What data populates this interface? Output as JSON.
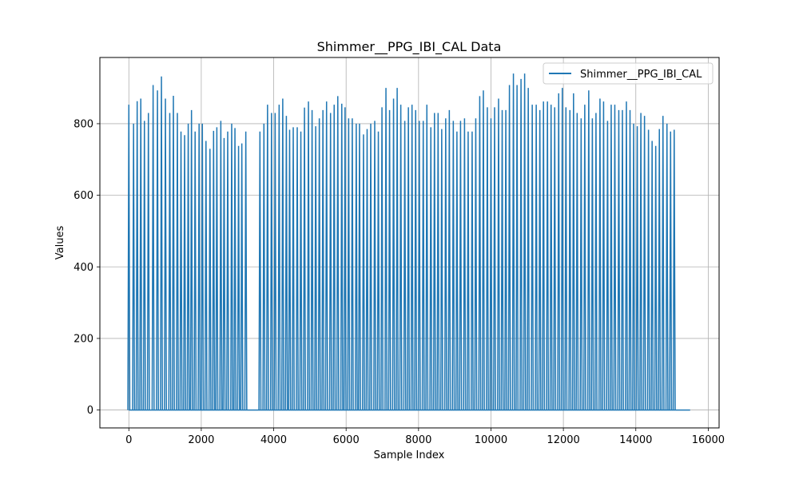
{
  "chart_data": {
    "type": "line",
    "title": "Shimmer__PPG_IBI_CAL Data",
    "xlabel": "Sample Index",
    "ylabel": "Values",
    "xlim": [
      -800,
      16300
    ],
    "ylim": [
      -50,
      985
    ],
    "xticks": [
      0,
      2000,
      4000,
      6000,
      8000,
      10000,
      12000,
      14000,
      16000
    ],
    "xtick_labels": [
      "0",
      "2000",
      "4000",
      "6000",
      "8000",
      "10000",
      "12000",
      "14000",
      "16000"
    ],
    "yticks": [
      0,
      200,
      400,
      600,
      800
    ],
    "ytick_labels": [
      "0",
      "200",
      "400",
      "600",
      "800"
    ],
    "grid": true,
    "legend_position": "top-right",
    "series": [
      {
        "name": "Shimmer__PPG_IBI_CAL",
        "color": "#1f77b4",
        "description": "baseline 0 with sparse impulse spikes (IBI values) at detected beats",
        "x_end": 15500,
        "spikes": [
          [
            0,
            853
          ],
          [
            130,
            800
          ],
          [
            230,
            863
          ],
          [
            330,
            870
          ],
          [
            430,
            808
          ],
          [
            540,
            830
          ],
          [
            670,
            908
          ],
          [
            790,
            893
          ],
          [
            900,
            932
          ],
          [
            1010,
            870
          ],
          [
            1130,
            830
          ],
          [
            1230,
            878
          ],
          [
            1340,
            830
          ],
          [
            1440,
            778
          ],
          [
            1540,
            768
          ],
          [
            1640,
            800
          ],
          [
            1730,
            838
          ],
          [
            1830,
            778
          ],
          [
            1940,
            800
          ],
          [
            2030,
            800
          ],
          [
            2130,
            752
          ],
          [
            2240,
            730
          ],
          [
            2340,
            780
          ],
          [
            2430,
            790
          ],
          [
            2540,
            808
          ],
          [
            2630,
            760
          ],
          [
            2730,
            778
          ],
          [
            2840,
            800
          ],
          [
            2930,
            788
          ],
          [
            3030,
            738
          ],
          [
            3120,
            745
          ],
          [
            3230,
            778
          ],
          [
            3620,
            778
          ],
          [
            3730,
            800
          ],
          [
            3830,
            853
          ],
          [
            3940,
            830
          ],
          [
            4040,
            830
          ],
          [
            4150,
            853
          ],
          [
            4250,
            870
          ],
          [
            4350,
            822
          ],
          [
            4440,
            783
          ],
          [
            4540,
            790
          ],
          [
            4650,
            790
          ],
          [
            4750,
            778
          ],
          [
            4850,
            845
          ],
          [
            4960,
            862
          ],
          [
            5060,
            838
          ],
          [
            5160,
            793
          ],
          [
            5260,
            815
          ],
          [
            5360,
            838
          ],
          [
            5460,
            862
          ],
          [
            5570,
            830
          ],
          [
            5670,
            853
          ],
          [
            5770,
            877
          ],
          [
            5880,
            856
          ],
          [
            5970,
            846
          ],
          [
            6070,
            815
          ],
          [
            6170,
            815
          ],
          [
            6280,
            800
          ],
          [
            6370,
            800
          ],
          [
            6480,
            770
          ],
          [
            6580,
            785
          ],
          [
            6680,
            800
          ],
          [
            6790,
            808
          ],
          [
            6890,
            778
          ],
          [
            6990,
            846
          ],
          [
            7100,
            900
          ],
          [
            7200,
            838
          ],
          [
            7310,
            870
          ],
          [
            7410,
            900
          ],
          [
            7510,
            853
          ],
          [
            7620,
            808
          ],
          [
            7720,
            846
          ],
          [
            7820,
            853
          ],
          [
            7920,
            838
          ],
          [
            8020,
            808
          ],
          [
            8130,
            808
          ],
          [
            8230,
            853
          ],
          [
            8340,
            790
          ],
          [
            8440,
            830
          ],
          [
            8540,
            830
          ],
          [
            8640,
            785
          ],
          [
            8750,
            815
          ],
          [
            8850,
            838
          ],
          [
            8960,
            808
          ],
          [
            9060,
            778
          ],
          [
            9160,
            808
          ],
          [
            9270,
            815
          ],
          [
            9370,
            778
          ],
          [
            9480,
            778
          ],
          [
            9580,
            815
          ],
          [
            9690,
            877
          ],
          [
            9790,
            893
          ],
          [
            9900,
            846
          ],
          [
            10000,
            815
          ],
          [
            10100,
            846
          ],
          [
            10210,
            870
          ],
          [
            10310,
            838
          ],
          [
            10410,
            838
          ],
          [
            10510,
            908
          ],
          [
            10620,
            940
          ],
          [
            10720,
            908
          ],
          [
            10830,
            925
          ],
          [
            10930,
            940
          ],
          [
            11030,
            900
          ],
          [
            11140,
            853
          ],
          [
            11250,
            853
          ],
          [
            11350,
            838
          ],
          [
            11450,
            862
          ],
          [
            11560,
            862
          ],
          [
            11660,
            853
          ],
          [
            11760,
            846
          ],
          [
            11870,
            885
          ],
          [
            11970,
            900
          ],
          [
            12070,
            846
          ],
          [
            12180,
            838
          ],
          [
            12280,
            885
          ],
          [
            12380,
            830
          ],
          [
            12490,
            815
          ],
          [
            12590,
            853
          ],
          [
            12700,
            893
          ],
          [
            12800,
            815
          ],
          [
            12900,
            830
          ],
          [
            13010,
            870
          ],
          [
            13110,
            862
          ],
          [
            13220,
            808
          ],
          [
            13320,
            853
          ],
          [
            13420,
            853
          ],
          [
            13530,
            838
          ],
          [
            13630,
            838
          ],
          [
            13740,
            862
          ],
          [
            13840,
            838
          ],
          [
            13940,
            800
          ],
          [
            14040,
            793
          ],
          [
            14140,
            830
          ],
          [
            14240,
            822
          ],
          [
            14350,
            783
          ],
          [
            14450,
            752
          ],
          [
            14550,
            738
          ],
          [
            14650,
            785
          ],
          [
            14750,
            822
          ],
          [
            14860,
            800
          ],
          [
            14960,
            778
          ],
          [
            15060,
            783
          ]
        ]
      }
    ]
  }
}
